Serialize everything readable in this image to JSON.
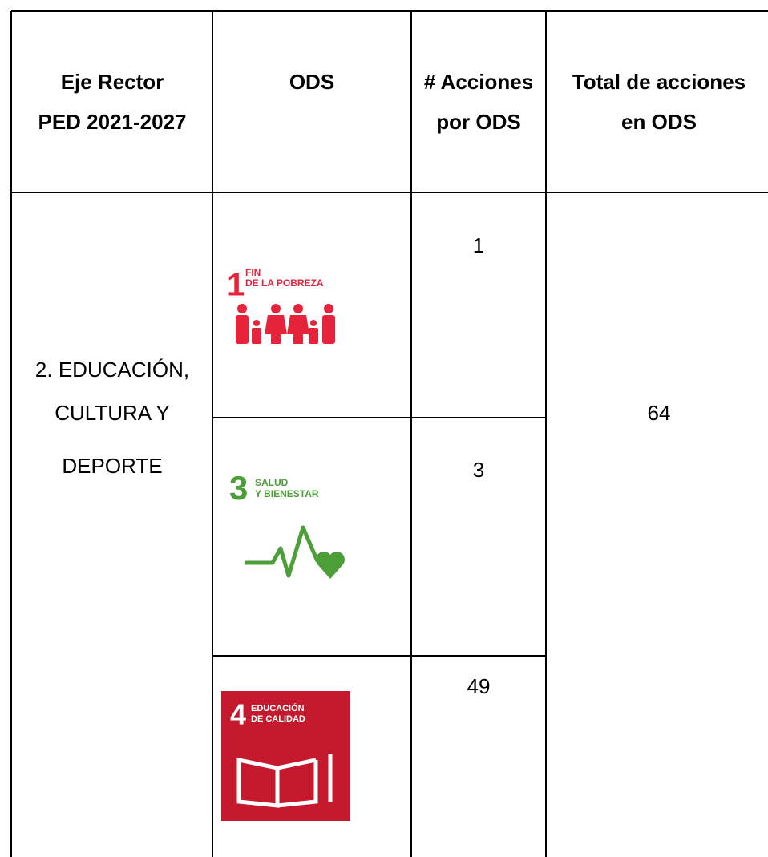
{
  "table": {
    "header": [
      [
        "Eje Rector",
        "PED 2021-2027"
      ],
      [
        "ODS"
      ],
      [
        "# Acciones",
        "por ODS"
      ],
      [
        "Total de acciones",
        "en ODS"
      ]
    ],
    "eje": [
      "2. EDUCACIÓN,",
      "CULTURA Y",
      "DEPORTE"
    ],
    "rows": [
      {
        "ods_number": "1",
        "ods_label": [
          "FIN",
          "DE LA POBREZA"
        ],
        "acciones": "1"
      },
      {
        "ods_number": "3",
        "ods_label": [
          "SALUD",
          "Y BIENESTAR"
        ],
        "acciones": "3"
      },
      {
        "ods_number": "4",
        "ods_label": [
          "EDUCACIÓN",
          "DE CALIDAD"
        ],
        "acciones": "49"
      }
    ],
    "total": "64"
  }
}
